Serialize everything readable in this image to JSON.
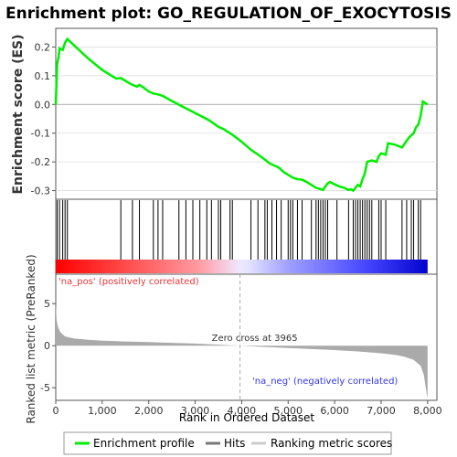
{
  "chart_data": {
    "type": "line",
    "title": "Enrichment plot: GO_REGULATION_OF_EXOCYTOSIS",
    "xlabel": "Rank in Ordered Dataset",
    "ylabel_top": "Enrichment score (ES)",
    "ylabel_bottom": "Ranked list metric (PreRanked)",
    "xlim": [
      0,
      8200
    ],
    "x_ticks": [
      0,
      1000,
      2000,
      3000,
      4000,
      5000,
      6000,
      7000,
      8000
    ],
    "x_tick_labels": [
      "0",
      "1,000",
      "2,000",
      "3,000",
      "4,000",
      "5,000",
      "6,000",
      "7,000",
      "8,000"
    ],
    "es_ylim": [
      -0.33,
      0.265
    ],
    "es_ticks": [
      0.2,
      0.1,
      0.0,
      -0.1,
      -0.2,
      -0.3
    ],
    "es_tick_labels": [
      "0.2",
      "0.1",
      "0.0",
      "-0.1",
      "-0.2",
      "-0.3"
    ],
    "metric_ylim": [
      -6.5,
      8.5
    ],
    "metric_ticks": [
      5,
      0,
      -5
    ],
    "metric_tick_labels": [
      "5",
      "0",
      "-5"
    ],
    "enrichment_profile": [
      [
        0,
        0.0
      ],
      [
        30,
        0.14
      ],
      [
        60,
        0.165
      ],
      [
        80,
        0.195
      ],
      [
        150,
        0.19
      ],
      [
        200,
        0.215
      ],
      [
        250,
        0.228
      ],
      [
        400,
        0.205
      ],
      [
        700,
        0.16
      ],
      [
        1000,
        0.12
      ],
      [
        1300,
        0.09
      ],
      [
        1400,
        0.092
      ],
      [
        1500,
        0.082
      ],
      [
        1650,
        0.068
      ],
      [
        1750,
        0.062
      ],
      [
        1800,
        0.068
      ],
      [
        1900,
        0.058
      ],
      [
        2000,
        0.045
      ],
      [
        2100,
        0.038
      ],
      [
        2200,
        0.035
      ],
      [
        2300,
        0.03
      ],
      [
        2500,
        0.012
      ],
      [
        2700,
        -0.005
      ],
      [
        3000,
        -0.03
      ],
      [
        3300,
        -0.055
      ],
      [
        3500,
        -0.078
      ],
      [
        3600,
        -0.085
      ],
      [
        3800,
        -0.105
      ],
      [
        4000,
        -0.13
      ],
      [
        4200,
        -0.158
      ],
      [
        4400,
        -0.18
      ],
      [
        4500,
        -0.192
      ],
      [
        4600,
        -0.205
      ],
      [
        4800,
        -0.22
      ],
      [
        4900,
        -0.235
      ],
      [
        5000,
        -0.245
      ],
      [
        5100,
        -0.255
      ],
      [
        5200,
        -0.26
      ],
      [
        5300,
        -0.262
      ],
      [
        5400,
        -0.27
      ],
      [
        5500,
        -0.28
      ],
      [
        5600,
        -0.29
      ],
      [
        5700,
        -0.295
      ],
      [
        5750,
        -0.298
      ],
      [
        5800,
        -0.285
      ],
      [
        5850,
        -0.275
      ],
      [
        5900,
        -0.27
      ],
      [
        6000,
        -0.278
      ],
      [
        6100,
        -0.285
      ],
      [
        6200,
        -0.29
      ],
      [
        6300,
        -0.298
      ],
      [
        6350,
        -0.295
      ],
      [
        6400,
        -0.3
      ],
      [
        6450,
        -0.29
      ],
      [
        6500,
        -0.28
      ],
      [
        6550,
        -0.285
      ],
      [
        6600,
        -0.26
      ],
      [
        6650,
        -0.24
      ],
      [
        6700,
        -0.2
      ],
      [
        6800,
        -0.195
      ],
      [
        6900,
        -0.2
      ],
      [
        6950,
        -0.18
      ],
      [
        7000,
        -0.17
      ],
      [
        7100,
        -0.175
      ],
      [
        7150,
        -0.135
      ],
      [
        7300,
        -0.14
      ],
      [
        7450,
        -0.15
      ],
      [
        7500,
        -0.138
      ],
      [
        7600,
        -0.115
      ],
      [
        7700,
        -0.1
      ],
      [
        7750,
        -0.08
      ],
      [
        7800,
        -0.07
      ],
      [
        7850,
        -0.04
      ],
      [
        7900,
        0.01
      ],
      [
        8000,
        0.0
      ]
    ],
    "hits": [
      30,
      80,
      150,
      200,
      250,
      1400,
      1650,
      1800,
      2100,
      2200,
      2300,
      2650,
      2800,
      2950,
      3100,
      3250,
      3350,
      3500,
      3550,
      3750,
      3800,
      4200,
      4350,
      4500,
      4550,
      4650,
      4750,
      4850,
      5000,
      5050,
      5100,
      5200,
      5300,
      5500,
      5600,
      5650,
      5700,
      5750,
      5800,
      5850,
      6050,
      6300,
      6400,
      6450,
      6500,
      6550,
      6600,
      6650,
      6700,
      6750,
      6800,
      6950,
      7000,
      7100,
      7450,
      7550,
      7650,
      7700,
      7800,
      7850
    ],
    "ranking_metric": [
      [
        0,
        5.0
      ],
      [
        20,
        3.0
      ],
      [
        50,
        2.2
      ],
      [
        100,
        1.6
      ],
      [
        200,
        1.1
      ],
      [
        400,
        0.85
      ],
      [
        700,
        0.7
      ],
      [
        1000,
        0.6
      ],
      [
        1500,
        0.5
      ],
      [
        2000,
        0.42
      ],
      [
        2500,
        0.34
      ],
      [
        3000,
        0.25
      ],
      [
        3500,
        0.12
      ],
      [
        3965,
        0.0
      ],
      [
        4500,
        -0.15
      ],
      [
        5000,
        -0.28
      ],
      [
        5500,
        -0.4
      ],
      [
        6000,
        -0.52
      ],
      [
        6500,
        -0.68
      ],
      [
        7000,
        -0.9
      ],
      [
        7300,
        -1.1
      ],
      [
        7500,
        -1.3
      ],
      [
        7700,
        -1.7
      ],
      [
        7850,
        -2.4
      ],
      [
        7920,
        -3.5
      ],
      [
        7960,
        -5.0
      ],
      [
        8000,
        -6.3
      ]
    ],
    "zero_cross": 3965,
    "annotations": {
      "zero_cross": "Zero cross at 3965",
      "pos": "'na_pos' (positively correlated)",
      "neg": "'na_neg' (negatively correlated)"
    },
    "legend": {
      "placement": "bottom",
      "items": [
        {
          "label": "Enrichment profile",
          "color": "#00ee00"
        },
        {
          "label": "Hits",
          "color": "#777777"
        },
        {
          "label": "Ranking metric scores",
          "color": "#cccccc"
        }
      ]
    },
    "colors": {
      "profile": "#00ee00",
      "pos_band": "#ff0000",
      "neg_band": "#0000ff",
      "pos_text": "#ee3333",
      "neg_text": "#3333ee",
      "metric_fill": "#aaaaaa"
    }
  }
}
